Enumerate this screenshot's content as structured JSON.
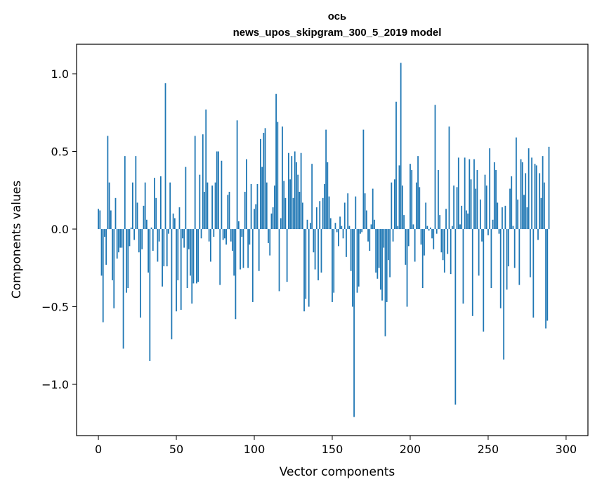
{
  "chart_data": {
    "type": "bar",
    "title_lines": [
      "ось",
      "news_upos_skipgram_300_5_2019 model"
    ],
    "xlabel": "Vector components",
    "ylabel": "Components values",
    "xlim": [
      -14,
      314
    ],
    "ylim": [
      -1.33,
      1.19
    ],
    "xticks": [
      0,
      50,
      100,
      150,
      200,
      250,
      300
    ],
    "xtick_labels": [
      "0",
      "50",
      "100",
      "150",
      "200",
      "250",
      "300"
    ],
    "yticks": [
      -1.0,
      -0.5,
      0.0,
      0.5,
      1.0
    ],
    "ytick_labels": [
      "−1.0",
      "−0.5",
      "0.0",
      "0.5",
      "1.0"
    ],
    "bar_color": "#1f77b4",
    "grid": false,
    "legend": "none",
    "series": [
      {
        "x_start": 0,
        "values": [
          0.13,
          0.12,
          -0.3,
          -0.6,
          -0.05,
          -0.23,
          0.6,
          0.3,
          0.12,
          -0.33,
          -0.51,
          0.2,
          -0.19,
          -0.15,
          -0.12,
          -0.12,
          -0.77,
          0.47,
          -0.41,
          -0.38,
          -0.11,
          0.01,
          0.3,
          -0.07,
          0.47,
          0.17,
          -0.15,
          -0.57,
          -0.13,
          0.15,
          0.3,
          0.06,
          -0.28,
          -0.85,
          0.01,
          -0.14,
          0.33,
          0.2,
          -0.21,
          -0.08,
          0.34,
          -0.37,
          -0.24,
          0.94,
          -0.24,
          -0.03,
          0.3,
          -0.71,
          0.1,
          0.07,
          -0.53,
          -0.33,
          0.14,
          -0.52,
          -0.06,
          -0.12,
          0.4,
          -0.38,
          -0.13,
          -0.3,
          -0.48,
          -0.35,
          0.6,
          -0.35,
          -0.34,
          0.35,
          -0.06,
          0.61,
          0.24,
          0.77,
          0.3,
          -0.08,
          -0.21,
          0.28,
          -0.05,
          0.3,
          0.5,
          0.5,
          -0.36,
          0.44,
          -0.07,
          -0.06,
          -0.1,
          0.22,
          0.24,
          -0.08,
          -0.14,
          -0.3,
          -0.58,
          0.7,
          0.05,
          -0.26,
          -0.05,
          -0.25,
          0.24,
          0.45,
          -0.25,
          -0.1,
          0.29,
          -0.47,
          0.13,
          0.16,
          0.29,
          -0.27,
          0.58,
          0.4,
          0.62,
          0.65,
          0.3,
          -0.09,
          -0.17,
          0.1,
          0.14,
          0.28,
          0.87,
          0.69,
          -0.4,
          0.07,
          0.66,
          0.31,
          0.2,
          -0.34,
          0.49,
          0.32,
          0.47,
          0.2,
          0.5,
          0.43,
          0.35,
          0.24,
          0.49,
          0.17,
          -0.53,
          -0.45,
          0.06,
          -0.5,
          0.04,
          0.42,
          -0.15,
          -0.26,
          0.14,
          -0.33,
          0.18,
          -0.28,
          0.2,
          0.29,
          0.64,
          0.43,
          0.21,
          0.07,
          -0.47,
          -0.41,
          0.04,
          -0.02,
          -0.11,
          0.08,
          0.02,
          -0.06,
          0.17,
          -0.18,
          0.23,
          0.02,
          -0.27,
          -0.5,
          -1.21,
          0.21,
          -0.41,
          -0.37,
          -0.03,
          -0.02,
          0.64,
          0.23,
          0.12,
          -0.08,
          -0.14,
          0.03,
          0.26,
          0.06,
          -0.28,
          -0.32,
          -0.25,
          -0.39,
          -0.46,
          -0.12,
          -0.69,
          -0.47,
          -0.2,
          -0.31,
          0.3,
          -0.08,
          0.32,
          0.82,
          0.02,
          0.41,
          1.07,
          0.28,
          0.09,
          -0.23,
          -0.5,
          -0.11,
          0.42,
          0.38,
          0.03,
          -0.21,
          0.3,
          0.47,
          0.27,
          -0.1,
          -0.38,
          -0.17,
          0.17,
          0.02,
          -0.01,
          0.01,
          -0.06,
          -0.13,
          0.8,
          -0.03,
          0.38,
          0.09,
          -0.15,
          -0.2,
          -0.28,
          0.13,
          -0.16,
          0.66,
          -0.29,
          0.02,
          0.28,
          -1.13,
          0.27,
          0.46,
          0.03,
          0.15,
          -0.48,
          0.46,
          0.12,
          0.1,
          0.45,
          0.32,
          -0.56,
          0.45,
          0.26,
          0.38,
          -0.3,
          0.19,
          -0.08,
          -0.66,
          0.35,
          0.28,
          -0.04,
          0.52,
          -0.38,
          0.06,
          0.43,
          0.38,
          0.17,
          -0.03,
          -0.51,
          0.14,
          -0.84,
          0.15,
          -0.39,
          -0.24,
          0.26,
          0.34,
          0.02,
          -0.25,
          0.59,
          0.19,
          -0.36,
          0.45,
          0.43,
          0.22,
          0.36,
          0.14,
          0.52,
          -0.31,
          0.46,
          -0.57,
          0.42,
          0.41,
          -0.07,
          0.36,
          0.2,
          0.47,
          0.3,
          -0.64,
          -0.59,
          0.53
        ]
      }
    ]
  }
}
